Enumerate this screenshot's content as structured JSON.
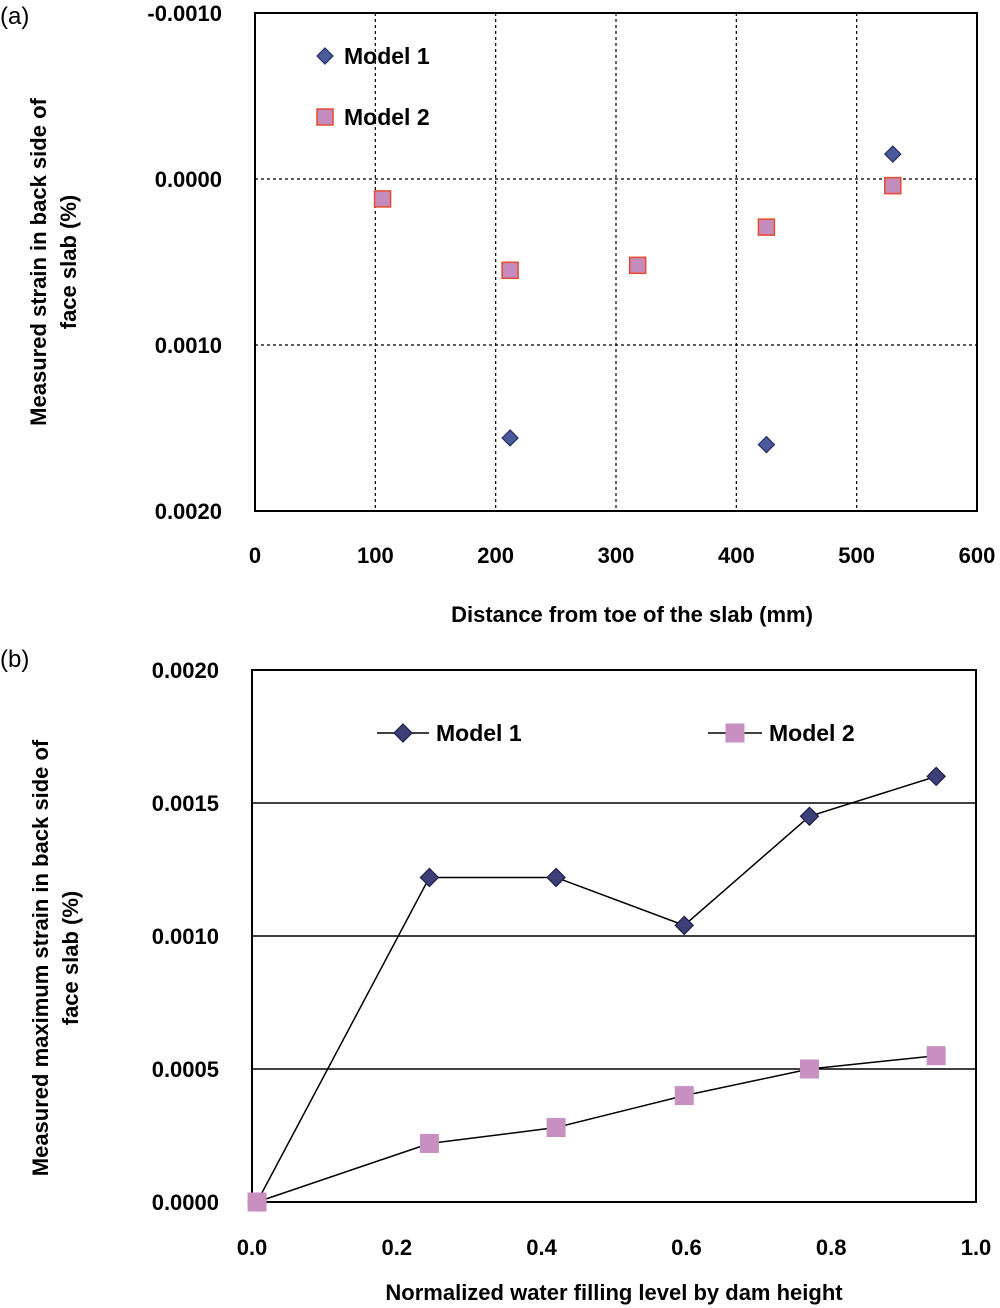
{
  "chart_data": [
    {
      "panel": "(a)",
      "type": "scatter",
      "title": "",
      "xlabel": "Distance from toe of the slab (mm)",
      "ylabel": "Measured strain in back side of face slab (%)",
      "ylabel_lines": [
        "Measured strain in back side of",
        "face slab (%)"
      ],
      "xlim": [
        0,
        600
      ],
      "ylim": [
        -0.001,
        0.002
      ],
      "y_inverted": true,
      "x_ticks": [
        "0",
        "100",
        "200",
        "300",
        "400",
        "500",
        "600"
      ],
      "x_tick_values": [
        0,
        100,
        200,
        300,
        400,
        500,
        600
      ],
      "y_ticks": [
        "-0.0010",
        "0.0000",
        "0.0010",
        "0.0020"
      ],
      "y_tick_values": [
        -0.001,
        0,
        0.001,
        0.002
      ],
      "grid": "dashed",
      "legend": "top-left",
      "series": [
        {
          "name": "Model 1",
          "marker": "diamond",
          "fill": "#4a5a9a",
          "stroke": "#26305e",
          "points": [
            [
              212,
              0.00156
            ],
            [
              425,
              0.0016
            ],
            [
              530,
              -0.00015
            ]
          ]
        },
        {
          "name": "Model 2",
          "marker": "square",
          "fill": "#c48cbc",
          "stroke": "#e84a30",
          "points": [
            [
              106,
              0.00012
            ],
            [
              212,
              0.00055
            ],
            [
              318,
              0.00052
            ],
            [
              425,
              0.00029
            ],
            [
              530,
              4e-05
            ]
          ]
        }
      ]
    },
    {
      "panel": "(b)",
      "type": "line",
      "title": "",
      "xlabel": "Normalized water filling level by dam height",
      "ylabel": "Measured maximum strain in back side of face slab (%)",
      "ylabel_lines": [
        "Measured maximum strain in back side of",
        "face slab (%)"
      ],
      "xlim": [
        0,
        1
      ],
      "ylim": [
        0,
        0.002
      ],
      "x_ticks": [
        "0.0",
        "0.2",
        "0.4",
        "0.6",
        "0.8",
        "1.0"
      ],
      "x_tick_values": [
        0,
        0.2,
        0.4,
        0.6,
        0.8,
        1.0
      ],
      "y_ticks": [
        "0.0000",
        "0.0005",
        "0.0010",
        "0.0015",
        "0.0020"
      ],
      "y_tick_values": [
        0,
        0.0005,
        0.001,
        0.0015,
        0.002
      ],
      "grid": "horizontal",
      "legend": "top",
      "series": [
        {
          "name": "Model 1",
          "marker": "diamond",
          "fill": "#3c3f78",
          "stroke": "#1e2048",
          "line": "#000000",
          "points": [
            [
              0.007,
              0.0
            ],
            [
              0.245,
              0.00122
            ],
            [
              0.42,
              0.00122
            ],
            [
              0.597,
              0.00104
            ],
            [
              0.77,
              0.00145
            ],
            [
              0.945,
              0.0016
            ]
          ]
        },
        {
          "name": "Model 2",
          "marker": "square",
          "fill": "#c890c0",
          "stroke": "#c890c0",
          "line": "#000000",
          "points": [
            [
              0.007,
              0.0
            ],
            [
              0.245,
              0.00022
            ],
            [
              0.42,
              0.00028
            ],
            [
              0.597,
              0.0004
            ],
            [
              0.77,
              0.0005
            ],
            [
              0.945,
              0.00055
            ]
          ]
        }
      ]
    }
  ]
}
